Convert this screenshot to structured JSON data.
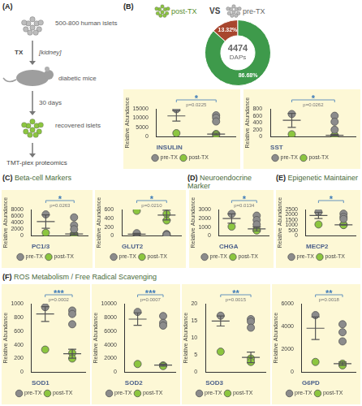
{
  "panels": [
    {
      "label": "(A)"
    },
    {
      "label": "(B)"
    },
    {
      "label": "(C)",
      "title": "Beta-cell Markers"
    },
    {
      "label": "(D)",
      "title": "Neuroendocrine Marker"
    },
    {
      "label": "(E)",
      "title": "Epigenetic Maintainer"
    },
    {
      "label": "(F)",
      "title": "ROS Metabolism / Free Radical Scavenging"
    }
  ],
  "diagram": {
    "source": "500-800 human islets",
    "step": "TX",
    "site": "[kidney]",
    "host": "diabetic mice",
    "duration": "30 days",
    "result": "recovered islets",
    "method": "TMT-plex proteomics"
  },
  "comparison": {
    "left": "post-TX",
    "joiner": "VS",
    "right": "pre-TX"
  },
  "chart_data": [
    {
      "type": "doughnut",
      "categories": [
        null,
        null
      ],
      "values": [
        13.32,
        86.68
      ],
      "value_labels": [
        "13.32%",
        "86.68%"
      ],
      "colors": [
        "#a8462e",
        "#3e9a4b"
      ],
      "data_labels": true,
      "annotations": [
        "4474",
        "DAPs"
      ]
    },
    {
      "type": "scatter",
      "title": "INSULIN",
      "y_label": "Relative Abundance",
      "ylim": [
        0,
        15000
      ],
      "yticks": [
        0,
        5000,
        10000,
        15000
      ],
      "grid": false,
      "legend": "bottom",
      "tick_labels": "y",
      "series": [
        {
          "name": "pre-TX",
          "color": "#8c8c8c",
          "marker": "circle",
          "values": [
            14800,
            11500,
            10200,
            8200
          ],
          "mean": 11175,
          "sd": 2790
        },
        {
          "name": "post-TX",
          "color": "#8cc63f",
          "marker": "circle",
          "values": [
            1900,
            1500,
            1000
          ],
          "mean": 1467,
          "sd": 451
        }
      ],
      "annotations": {
        "significance": "*",
        "p_value": "p=0.0225"
      }
    },
    {
      "type": "scatter",
      "title": "SST",
      "y_label": "Relative Abundance",
      "ylim": [
        0,
        800
      ],
      "yticks": [
        0,
        200,
        400,
        600,
        800
      ],
      "grid": false,
      "legend": "bottom",
      "tick_labels": "y",
      "series": [
        {
          "name": "pre-TX",
          "color": "#8c8c8c",
          "marker": "circle",
          "values": [
            650,
            600,
            430,
            200
          ],
          "mean": 470,
          "sd": 201
        },
        {
          "name": "post-TX",
          "color": "#8cc63f",
          "marker": "circle",
          "values": [
            70,
            40,
            20
          ],
          "mean": 43,
          "sd": 25
        }
      ],
      "annotations": {
        "significance": "*",
        "p_value": "p=0.0262"
      }
    },
    {
      "type": "scatter",
      "title": "PC1/3",
      "y_label": "Relative Abundance",
      "ylim": [
        0,
        8000
      ],
      "yticks": [
        0,
        2000,
        4000,
        6000,
        8000
      ],
      "grid": false,
      "legend": "bottom",
      "tick_labels": "y",
      "series": [
        {
          "name": "pre-TX",
          "color": "#8c8c8c",
          "marker": "circle",
          "values": [
            6500,
            5600,
            3200,
            2000
          ],
          "mean": 4325,
          "sd": 2055
        },
        {
          "name": "post-TX",
          "color": "#8cc63f",
          "marker": "circle",
          "values": [
            900,
            500,
            300
          ],
          "mean": 567,
          "sd": 306
        }
      ],
      "annotations": {
        "significance": "*",
        "p_value": "p=0.0263"
      }
    },
    {
      "type": "scatter",
      "title": "GLUT2",
      "y_label": "Relative Abundance",
      "ylim": [
        0,
        600
      ],
      "yticks": [
        0,
        200,
        400,
        600
      ],
      "grid": false,
      "legend": "bottom",
      "tick_labels": "y",
      "series": [
        {
          "name": "pre-TX",
          "color": "#8c8c8c",
          "marker": "circle",
          "values": [
            60,
            40,
            30,
            20
          ],
          "mean": 38,
          "sd": 17
        },
        {
          "name": "post-TX",
          "color": "#8cc63f",
          "marker": "circle",
          "values": [
            570,
            500,
            350
          ],
          "mean": 473,
          "sd": 112
        }
      ],
      "annotations": {
        "significance": "*",
        "p_value": "p=0.0210"
      }
    },
    {
      "type": "scatter",
      "title": "CHGA",
      "y_label": "Relative Abundance",
      "ylim": [
        0,
        3000
      ],
      "yticks": [
        0,
        1000,
        2000,
        3000
      ],
      "grid": false,
      "legend": "bottom",
      "tick_labels": "y",
      "series": [
        {
          "name": "pre-TX",
          "color": "#8c8c8c",
          "marker": "circle",
          "values": [
            2500,
            2300,
            1800,
            1300
          ],
          "mean": 1975,
          "sd": 532
        },
        {
          "name": "post-TX",
          "color": "#8cc63f",
          "marker": "circle",
          "values": [
            1050,
            700,
            600
          ],
          "mean": 783,
          "sd": 236
        }
      ],
      "annotations": {
        "significance": "*",
        "p_value": "p=0.0134"
      }
    },
    {
      "type": "scatter",
      "title": "MECP2",
      "y_label": "Relative Abundance",
      "ylim": [
        0,
        2500
      ],
      "yticks": [
        0,
        500,
        1000,
        1500,
        2000,
        2500
      ],
      "grid": false,
      "legend": "bottom",
      "tick_labels": "y",
      "series": [
        {
          "name": "pre-TX",
          "color": "#8c8c8c",
          "marker": "circle",
          "values": [
            2250,
            2100,
            1800,
            1600
          ],
          "mean": 1938,
          "sd": 293
        },
        {
          "name": "post-TX",
          "color": "#8cc63f",
          "marker": "circle",
          "values": [
            1080,
            1050,
            1020
          ],
          "mean": 1050,
          "sd": 30
        }
      ],
      "annotations": {
        "significance": "*"
      }
    },
    {
      "type": "scatter",
      "title": "SOD1",
      "y_label": "Relative Abundance",
      "ylim": [
        0,
        1000
      ],
      "yticks": [
        0,
        200,
        400,
        600,
        800,
        1000
      ],
      "grid": false,
      "legend": "bottom",
      "tick_labels": "y",
      "series": [
        {
          "name": "pre-TX",
          "color": "#8c8c8c",
          "marker": "circle",
          "values": [
            950,
            900,
            850,
            700
          ],
          "mean": 850,
          "sd": 108
        },
        {
          "name": "post-TX",
          "color": "#8cc63f",
          "marker": "circle",
          "values": [
            330,
            280,
            200
          ],
          "mean": 270,
          "sd": 66
        }
      ],
      "annotations": {
        "significance": "***",
        "p_value": "p=0.0002"
      }
    },
    {
      "type": "scatter",
      "title": "SOD2",
      "y_label": "Relative Abundance",
      "ylim": [
        0,
        10000
      ],
      "yticks": [
        0,
        2000,
        4000,
        6000,
        8000,
        10000
      ],
      "grid": false,
      "legend": "bottom",
      "tick_labels": "y",
      "series": [
        {
          "name": "pre-TX",
          "color": "#8c8c8c",
          "marker": "circle",
          "values": [
            8800,
            8200,
            7200,
            6800
          ],
          "mean": 7750,
          "sd": 915
        },
        {
          "name": "post-TX",
          "color": "#8cc63f",
          "marker": "circle",
          "values": [
            1200,
            1000,
            900
          ],
          "mean": 1033,
          "sd": 153
        }
      ],
      "annotations": {
        "significance": "***",
        "p_value": "p=0.0007"
      }
    },
    {
      "type": "scatter",
      "title": "SOD3",
      "y_label": "Relative Abundance",
      "ylim": [
        0,
        20
      ],
      "yticks": [
        0,
        5,
        10,
        15,
        20
      ],
      "grid": false,
      "legend": "bottom",
      "tick_labels": "y",
      "series": [
        {
          "name": "pre-TX",
          "color": "#8c8c8c",
          "marker": "circle",
          "values": [
            16.5,
            15.5,
            14.8,
            13
          ],
          "mean": 14.95,
          "sd": 1.47
        },
        {
          "name": "post-TX",
          "color": "#8cc63f",
          "marker": "circle",
          "values": [
            6,
            4,
            3
          ],
          "mean": 4.33,
          "sd": 1.53
        }
      ],
      "annotations": {
        "significance": "**",
        "p_value": "p=0.0015"
      }
    },
    {
      "type": "scatter",
      "title": "G6PD",
      "y_label": "Relative Abundance",
      "ylim": [
        0,
        6000
      ],
      "yticks": [
        0,
        2000,
        4000,
        6000
      ],
      "grid": false,
      "legend": "bottom",
      "tick_labels": "y",
      "series": [
        {
          "name": "pre-TX",
          "color": "#8c8c8c",
          "marker": "circle",
          "values": [
            5000,
            4200,
            3500,
            2700
          ],
          "mean": 3850,
          "sd": 980
        },
        {
          "name": "post-TX",
          "color": "#8cc63f",
          "marker": "circle",
          "values": [
            900,
            750,
            600
          ],
          "mean": 750,
          "sd": 150
        }
      ],
      "annotations": {
        "significance": "**",
        "p_value": "p=0.0018"
      }
    }
  ]
}
